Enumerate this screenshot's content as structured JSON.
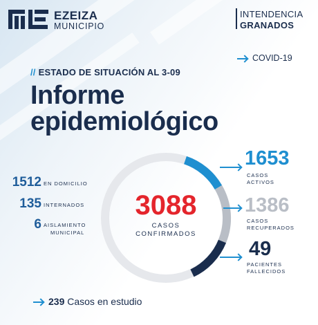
{
  "header": {
    "brand_line1": "EZEIZA",
    "brand_line2": "MUNICIPIO",
    "right_line1": "INTENDENCIA",
    "right_line2": "GRANADOS"
  },
  "tag": "COVID-19",
  "kicker_slashes": "//",
  "kicker_text": "ESTADO DE SITUACIÓN AL 3-09",
  "title_line1": "Informe",
  "title_line2": "epidemiológico",
  "left_stats": [
    {
      "value": "1512",
      "label": "EN DOMICILIO"
    },
    {
      "value": "135",
      "label": "INTERNADOS"
    },
    {
      "value": "6",
      "label_line1": "AISLAMIENTO",
      "label_line2": "MUNICIPAL"
    }
  ],
  "center": {
    "value": "3088",
    "label_line1": "CASOS",
    "label_line2": "CONFIRMADOS"
  },
  "right_stats": [
    {
      "value": "1653",
      "label_line1": "CASOS",
      "label_line2": "ACTIVOS",
      "color": "#1f8fd0"
    },
    {
      "value": "1386",
      "label_line1": "CASOS",
      "label_line2": "RECUPERADOS",
      "color": "#b9bec6"
    },
    {
      "value": "49",
      "label_line1": "PACIENTES",
      "label_line2": "FALLECIDOS",
      "color": "#1a2d4d"
    }
  ],
  "footer": {
    "value": "239",
    "text": "Casos en estudio"
  },
  "colors": {
    "navy": "#1a2d4d",
    "blue": "#1f8fd0",
    "gray": "#b9bec6",
    "red": "#e4252c"
  }
}
